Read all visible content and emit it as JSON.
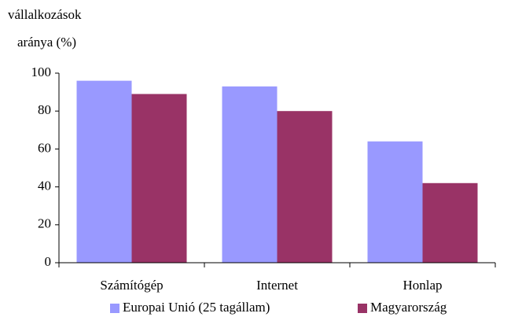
{
  "chart_data": {
    "type": "bar",
    "ylabel": [
      "vállalkozások",
      "aránya (%)"
    ],
    "categories": [
      "Számítógép",
      "Internet",
      "Honlap"
    ],
    "series": [
      {
        "name": "Europai Unió (25 tagállam)",
        "color": "#9999ff",
        "values": [
          96,
          93,
          64
        ]
      },
      {
        "name": "Magyarország",
        "color": "#993366",
        "values": [
          89,
          80,
          42
        ]
      }
    ],
    "ylim": [
      0,
      100
    ],
    "yticks": [
      0,
      20,
      40,
      60,
      80,
      100
    ],
    "grid": false,
    "legend": "bottom"
  }
}
